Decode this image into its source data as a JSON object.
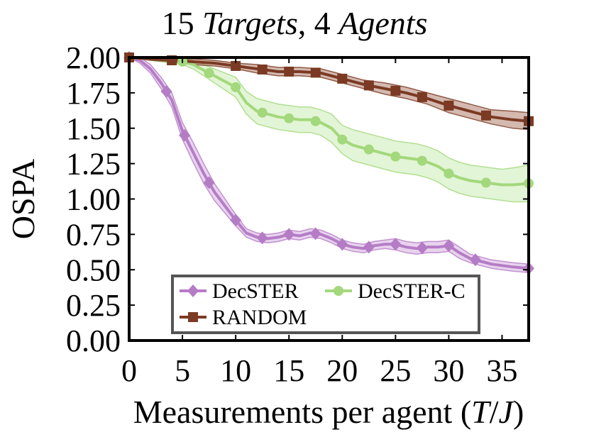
{
  "chart_data": {
    "type": "line",
    "title_parts": [
      {
        "text": "15 ",
        "italic": false
      },
      {
        "text": "Targets",
        "italic": true
      },
      {
        "text": ", 4 ",
        "italic": false
      },
      {
        "text": "Agents",
        "italic": true
      }
    ],
    "xlabel_parts": [
      {
        "text": "Measurements per agent (",
        "italic": false
      },
      {
        "text": "T",
        "italic": true
      },
      {
        "text": "/",
        "italic": false
      },
      {
        "text": "J",
        "italic": true
      },
      {
        "text": ")",
        "italic": false
      }
    ],
    "ylabel": "OSPA",
    "xlim": [
      0,
      37.5
    ],
    "ylim": [
      0,
      2.0
    ],
    "xticks": [
      0,
      5,
      10,
      15,
      20,
      25,
      30,
      35
    ],
    "xtick_labels": [
      "0",
      "5",
      "10",
      "15",
      "20",
      "25",
      "30",
      "35"
    ],
    "yticks": [
      0,
      0.25,
      0.5,
      0.75,
      1.0,
      1.25,
      1.5,
      1.75,
      2.0
    ],
    "ytick_labels": [
      "0.00",
      "0.25",
      "0.50",
      "0.75",
      "1.00",
      "1.25",
      "1.50",
      "1.75",
      "2.00"
    ],
    "grid": false,
    "legend_position": "bottom-left",
    "series": [
      {
        "name": "DecSTER",
        "color": "#b57cc6",
        "fill": "#d9b5e3",
        "marker": "diamond",
        "marker_x": [
          0,
          3.5,
          5.2,
          7.5,
          10,
          12.5,
          15,
          17.5,
          20,
          22.5,
          25,
          27.5,
          30,
          32.5,
          37.5
        ],
        "x": [
          0,
          1,
          2,
          3,
          4,
          5,
          6,
          7,
          8,
          9,
          10,
          11,
          12,
          13,
          14,
          15,
          16,
          17,
          18,
          19,
          20,
          21,
          22,
          23,
          24,
          25,
          26,
          27,
          28,
          29,
          30,
          31,
          32,
          33,
          34,
          35,
          36,
          37.5
        ],
        "y": [
          2.0,
          1.98,
          1.92,
          1.82,
          1.7,
          1.48,
          1.33,
          1.18,
          1.05,
          0.95,
          0.85,
          0.76,
          0.73,
          0.72,
          0.73,
          0.75,
          0.74,
          0.76,
          0.75,
          0.72,
          0.68,
          0.66,
          0.65,
          0.67,
          0.68,
          0.68,
          0.66,
          0.65,
          0.66,
          0.66,
          0.67,
          0.62,
          0.58,
          0.56,
          0.54,
          0.53,
          0.52,
          0.51
        ],
        "band": [
          0.0,
          0.02,
          0.03,
          0.04,
          0.05,
          0.06,
          0.07,
          0.07,
          0.06,
          0.05,
          0.04,
          0.03,
          0.03,
          0.03,
          0.03,
          0.03,
          0.03,
          0.03,
          0.03,
          0.03,
          0.03,
          0.03,
          0.03,
          0.03,
          0.03,
          0.04,
          0.04,
          0.04,
          0.04,
          0.04,
          0.04,
          0.04,
          0.03,
          0.03,
          0.03,
          0.03,
          0.03,
          0.03
        ]
      },
      {
        "name": "DecSTER-C",
        "color": "#a3d87c",
        "fill": "#cfeebb",
        "marker": "circle",
        "marker_x": [
          0,
          5,
          7.5,
          10,
          12.5,
          15,
          17.5,
          20,
          22.5,
          25,
          27.5,
          30,
          33.5,
          37.5
        ],
        "x": [
          0,
          2,
          4,
          5,
          6,
          7,
          8,
          9,
          10,
          11,
          12,
          13,
          14,
          15,
          16,
          17,
          18,
          19,
          20,
          21,
          22,
          23,
          24,
          25,
          26,
          27,
          28,
          29,
          30,
          31,
          32,
          33,
          34,
          35,
          36,
          37.5
        ],
        "y": [
          2.0,
          1.99,
          1.98,
          1.97,
          1.95,
          1.91,
          1.87,
          1.83,
          1.79,
          1.68,
          1.62,
          1.6,
          1.58,
          1.57,
          1.56,
          1.56,
          1.54,
          1.5,
          1.42,
          1.38,
          1.36,
          1.34,
          1.32,
          1.3,
          1.29,
          1.28,
          1.26,
          1.23,
          1.18,
          1.15,
          1.13,
          1.12,
          1.11,
          1.1,
          1.1,
          1.11
        ],
        "band": [
          0.0,
          0.01,
          0.02,
          0.02,
          0.03,
          0.04,
          0.05,
          0.06,
          0.07,
          0.08,
          0.09,
          0.09,
          0.09,
          0.09,
          0.09,
          0.09,
          0.09,
          0.1,
          0.1,
          0.11,
          0.11,
          0.11,
          0.11,
          0.11,
          0.11,
          0.11,
          0.11,
          0.11,
          0.11,
          0.11,
          0.11,
          0.11,
          0.11,
          0.11,
          0.12,
          0.13
        ]
      },
      {
        "name": "RANDOM",
        "color": "#7b3a23",
        "fill": "#b88a7a",
        "marker": "square",
        "marker_x": [
          0,
          4,
          10,
          12.5,
          15,
          17.5,
          20,
          22.5,
          25,
          27.5,
          30,
          33.5,
          37.5
        ],
        "x": [
          0,
          2,
          4,
          6,
          8,
          10,
          12,
          14,
          16,
          18,
          20,
          22,
          24,
          26,
          28,
          30,
          32,
          34,
          36,
          37.5
        ],
        "y": [
          2.0,
          1.99,
          1.98,
          1.97,
          1.96,
          1.94,
          1.92,
          1.9,
          1.9,
          1.89,
          1.85,
          1.81,
          1.78,
          1.75,
          1.71,
          1.66,
          1.62,
          1.58,
          1.56,
          1.55
        ],
        "band": [
          0.0,
          0.01,
          0.01,
          0.02,
          0.02,
          0.02,
          0.03,
          0.03,
          0.03,
          0.03,
          0.03,
          0.03,
          0.04,
          0.04,
          0.04,
          0.05,
          0.05,
          0.05,
          0.06,
          0.06
        ]
      }
    ]
  }
}
